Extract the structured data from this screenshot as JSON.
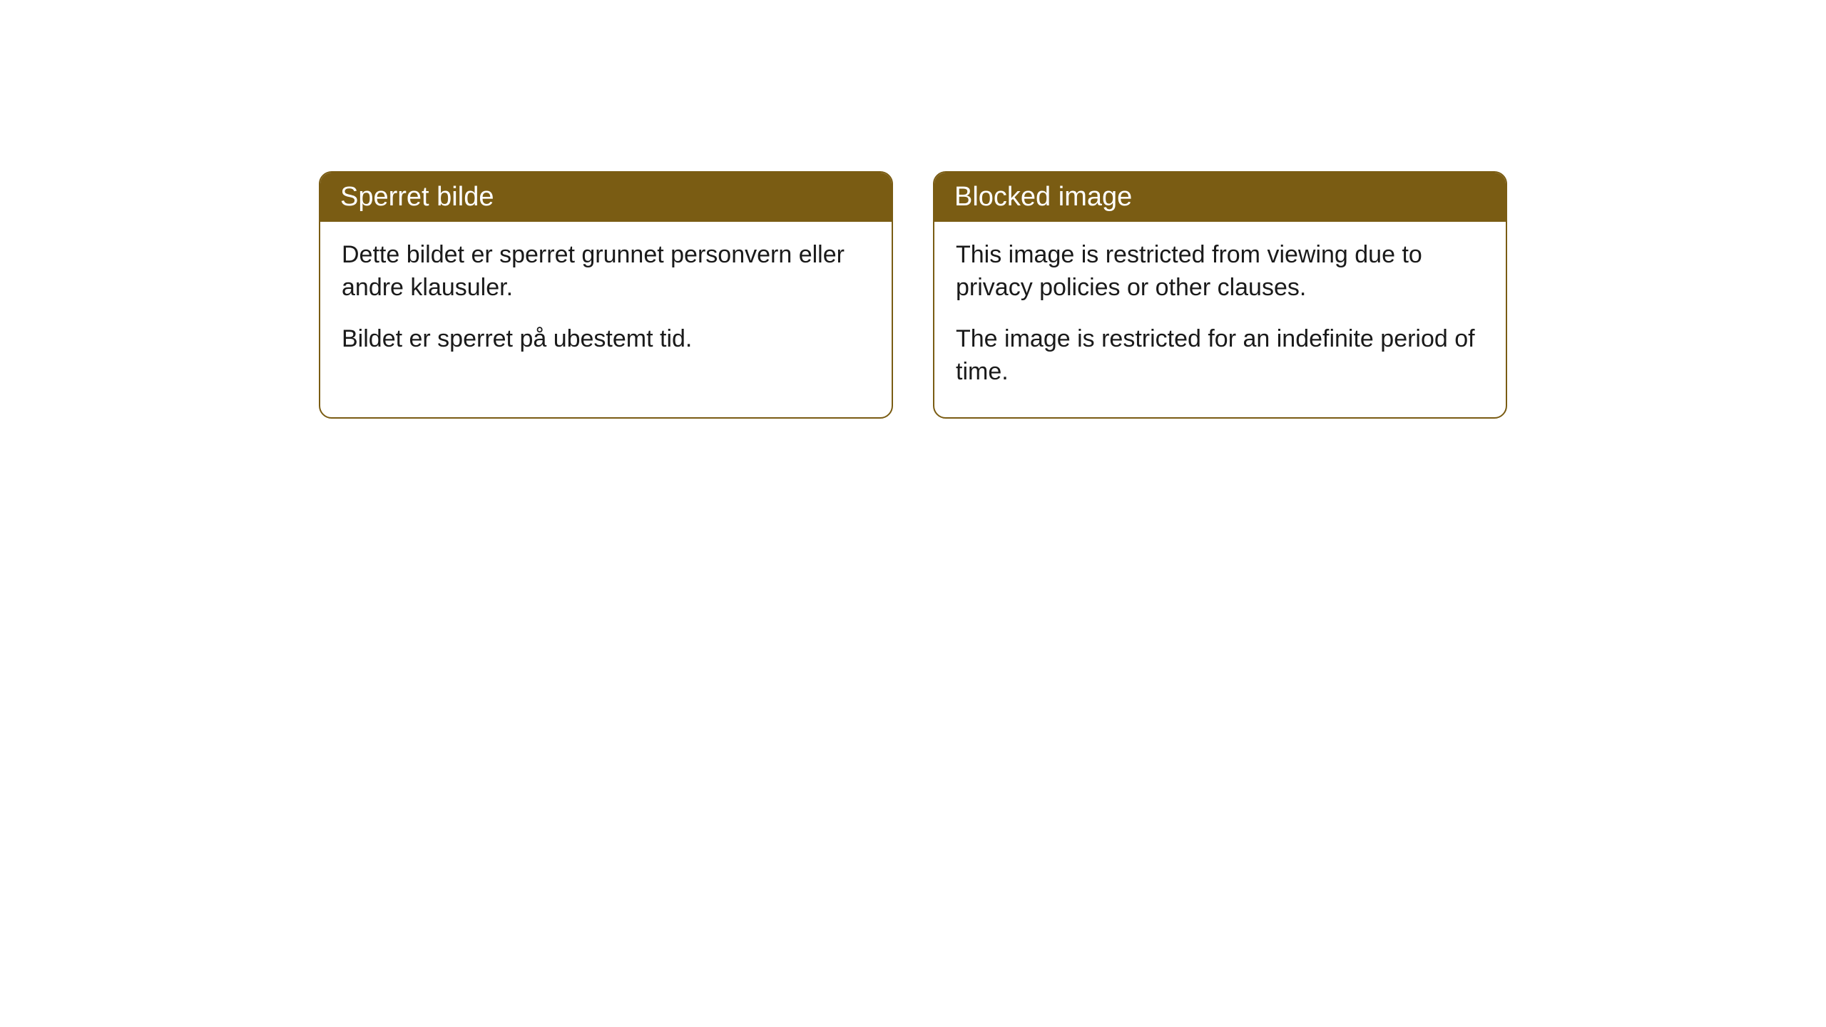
{
  "cards": [
    {
      "title": "Sperret bilde",
      "paragraph1": "Dette bildet er sperret grunnet personvern eller andre klausuler.",
      "paragraph2": "Bildet er sperret på ubestemt tid."
    },
    {
      "title": "Blocked image",
      "paragraph1": "This image is restricted from viewing due to privacy policies or other clauses.",
      "paragraph2": "The image is restricted for an indefinite period of time."
    }
  ],
  "styling": {
    "header_background_color": "#7a5c13",
    "header_text_color": "#ffffff",
    "body_text_color": "#1a1a1a",
    "border_color": "#7a5c13",
    "card_background_color": "#ffffff",
    "page_background_color": "#ffffff",
    "border_radius": 18,
    "header_font_size": 38,
    "body_font_size": 34
  }
}
